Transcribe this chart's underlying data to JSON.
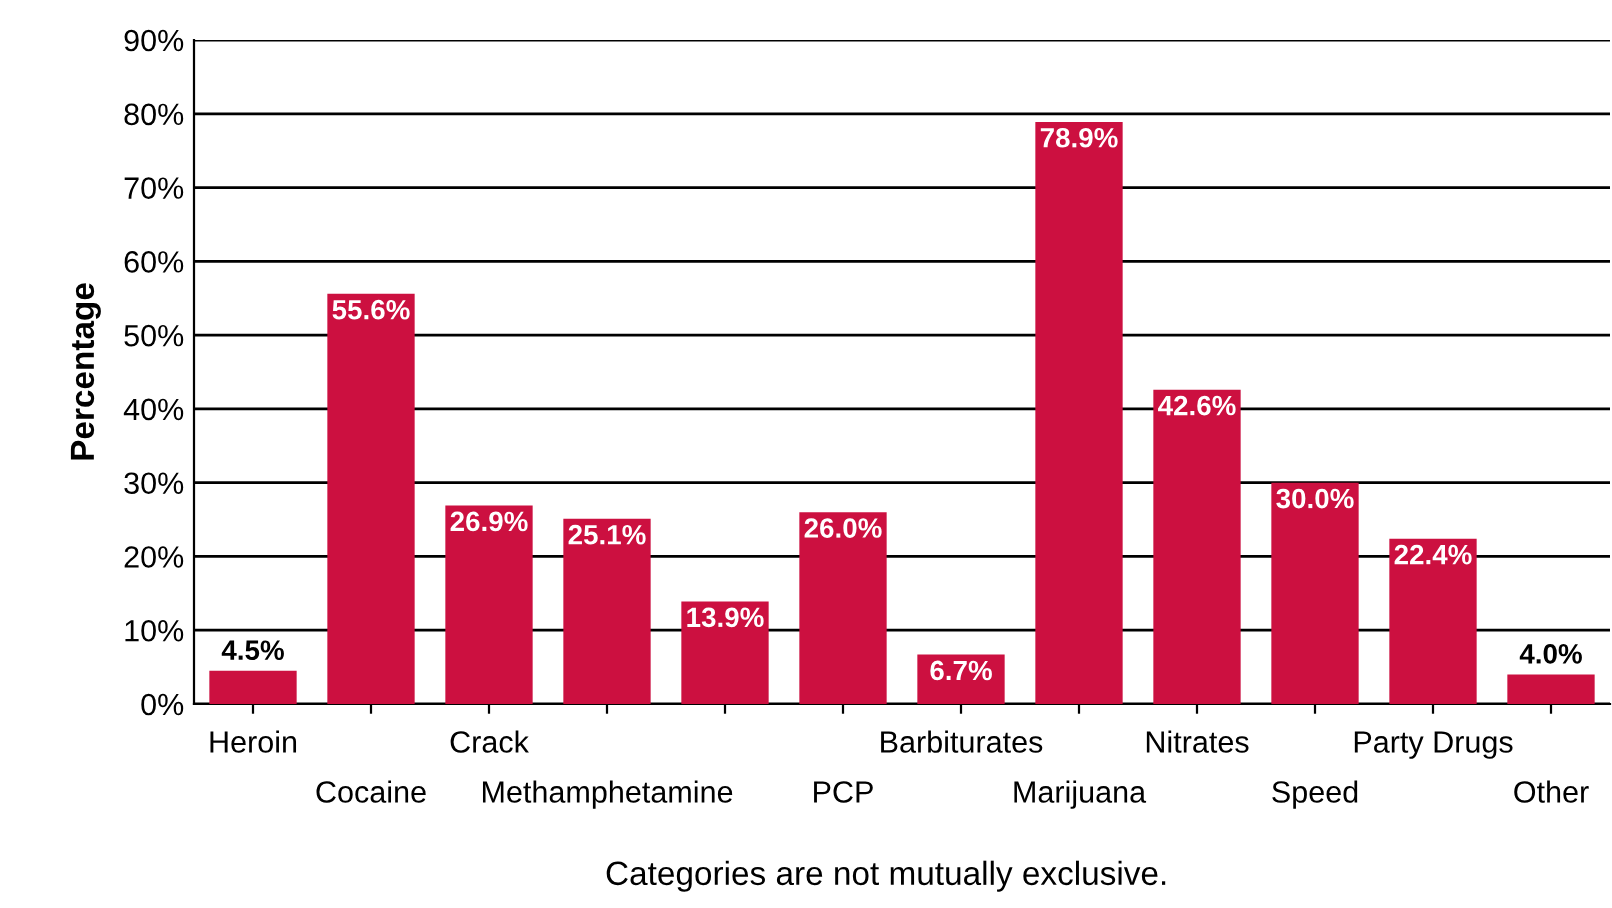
{
  "chart_data": {
    "type": "bar",
    "ylabel": "Percentage",
    "categories": [
      "Heroin",
      "Cocaine",
      "Crack",
      "Methamphetamine",
      null,
      "PCP",
      "Barbiturates",
      "Marijuana",
      "Nitrates",
      "Speed",
      "Party Drugs",
      "Other"
    ],
    "values": [
      4.5,
      55.6,
      26.9,
      25.1,
      13.9,
      26.0,
      6.7,
      78.9,
      42.6,
      30.0,
      22.4,
      4.0
    ],
    "value_labels": [
      "4.5%",
      "55.6%",
      "26.9%",
      "25.1%",
      "13.9%",
      "26.0%",
      "6.7%",
      "78.9%",
      "42.6%",
      "30.0%",
      "22.4%",
      "4.0%"
    ],
    "color": "#cc1040",
    "ylim": [
      0,
      90
    ],
    "yticks": [
      {
        "value": 0,
        "label": "0%"
      },
      {
        "value": 10,
        "label": "10%"
      },
      {
        "value": 20,
        "label": "20%"
      },
      {
        "value": 30,
        "label": "30%"
      },
      {
        "value": 40,
        "label": "40%"
      },
      {
        "value": 50,
        "label": "50%"
      },
      {
        "value": 60,
        "label": "60%"
      },
      {
        "value": 70,
        "label": "70%"
      },
      {
        "value": 80,
        "label": "80%"
      },
      {
        "value": 90,
        "label": "90%"
      }
    ],
    "grid": "y",
    "annotations": [
      "Categories are not mutually exclusive."
    ]
  }
}
